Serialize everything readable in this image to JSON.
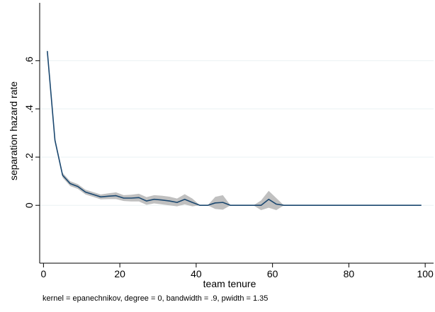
{
  "chart_data": {
    "type": "line",
    "title": "",
    "xlabel": "team tenure",
    "ylabel": "separation hazard rate",
    "note": "kernel = epanechnikov, degree = 0, bandwidth = .9, pwidth = 1.35",
    "xlim": [
      0,
      100
    ],
    "ylim": [
      -0.24,
      0.84
    ],
    "x_ticks": [
      0,
      20,
      40,
      60,
      80,
      100
    ],
    "x_tick_labels": [
      "0",
      "20",
      "40",
      "60",
      "80",
      "100"
    ],
    "y_ticks": [
      0,
      0.2,
      0.4,
      0.6
    ],
    "y_tick_labels": [
      "0",
      ".2",
      ".4",
      ".6"
    ],
    "grid": "horizontal",
    "colors": {
      "line": "#1a476f",
      "band": "#c0c0c0",
      "grid": "#eaf2f3",
      "axis": "#000000"
    },
    "series": [
      {
        "x": [
          1,
          3,
          5,
          7,
          9,
          11,
          13,
          15,
          17,
          19,
          21,
          23,
          25,
          27,
          29,
          31,
          33,
          35,
          37,
          39,
          41,
          43,
          45,
          47,
          49,
          51,
          53,
          55,
          57,
          59,
          61,
          63,
          65,
          70,
          75,
          80,
          85,
          90,
          95,
          99
        ],
        "values": [
          0.64,
          0.27,
          0.125,
          0.09,
          0.078,
          0.055,
          0.045,
          0.035,
          0.038,
          0.04,
          0.03,
          0.03,
          0.032,
          0.018,
          0.025,
          0.022,
          0.018,
          0.012,
          0.025,
          0.012,
          0,
          0,
          0.01,
          0.012,
          0,
          0,
          0,
          0,
          0,
          0.025,
          0.005,
          0,
          0,
          0,
          0,
          0,
          0,
          0,
          0,
          0
        ],
        "ci_lower": [
          0.63,
          0.26,
          0.115,
          0.08,
          0.068,
          0.045,
          0.035,
          0.025,
          0.026,
          0.026,
          0.018,
          0.016,
          0.016,
          0.002,
          0.008,
          0.004,
          0.0,
          -0.004,
          0.004,
          -0.004,
          0,
          0,
          -0.015,
          -0.018,
          0,
          0,
          0,
          0,
          -0.02,
          -0.01,
          -0.02,
          0,
          0,
          0,
          0,
          0,
          0,
          0,
          0,
          0
        ],
        "ci_upper": [
          0.65,
          0.28,
          0.135,
          0.1,
          0.088,
          0.065,
          0.055,
          0.045,
          0.05,
          0.054,
          0.042,
          0.044,
          0.048,
          0.034,
          0.042,
          0.04,
          0.036,
          0.028,
          0.046,
          0.028,
          0,
          0,
          0.035,
          0.042,
          0,
          0,
          0,
          0,
          0.02,
          0.06,
          0.03,
          0,
          0,
          0,
          0,
          0,
          0,
          0,
          0,
          0
        ]
      }
    ]
  }
}
